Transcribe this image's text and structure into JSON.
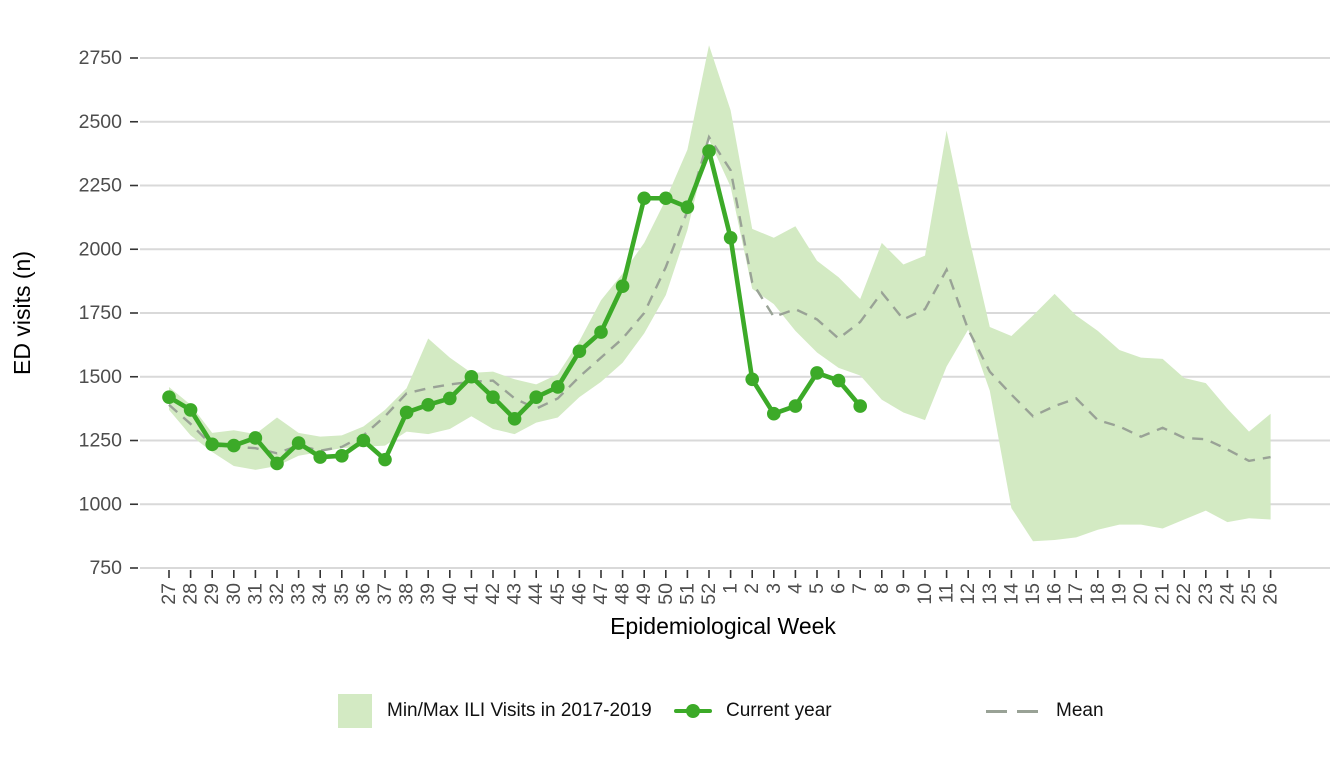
{
  "figure": {
    "y_axis_title": "ED visits (n)",
    "x_axis_title": "Epidemiological Week",
    "legend": {
      "band_label": "Min/Max ILI Visits in 2017-2019",
      "current_label": "Current year",
      "mean_label": "Mean"
    },
    "colors": {
      "band": "#d3eac3",
      "current": "#3caa28",
      "mean": "#99a296",
      "grid": "#d9d9d9",
      "tick": "#333333",
      "axis_text": "#4d4d4d",
      "title_text": "#000000"
    }
  },
  "chart_data": {
    "type": "line",
    "title": "",
    "xlabel": "Epidemiological Week",
    "ylabel": "ED visits (n)",
    "x": [
      "27",
      "28",
      "29",
      "30",
      "31",
      "32",
      "33",
      "34",
      "35",
      "36",
      "37",
      "38",
      "39",
      "40",
      "41",
      "42",
      "43",
      "44",
      "45",
      "46",
      "47",
      "48",
      "49",
      "50",
      "51",
      "52",
      "1",
      "2",
      "3",
      "4",
      "5",
      "6",
      "7",
      "8",
      "9",
      "10",
      "11",
      "12",
      "13",
      "14",
      "15",
      "16",
      "17",
      "18",
      "19",
      "20",
      "21",
      "22",
      "23",
      "24",
      "25",
      "26"
    ],
    "ylim": [
      750,
      2800
    ],
    "y_ticks": [
      750,
      1000,
      1250,
      1500,
      1750,
      2000,
      2250,
      2500,
      2750
    ],
    "grid": "horizontal",
    "legend_position": "bottom",
    "series": [
      {
        "name": "Min/Max ILI Visits in 2017-2019",
        "type": "band",
        "max": [
          1460,
          1390,
          1280,
          1290,
          1275,
          1340,
          1280,
          1265,
          1270,
          1305,
          1370,
          1455,
          1650,
          1575,
          1515,
          1520,
          1490,
          1470,
          1510,
          1640,
          1800,
          1905,
          2025,
          2195,
          2390,
          2800,
          2545,
          2080,
          2045,
          2090,
          1955,
          1890,
          1805,
          2025,
          1940,
          1975,
          2465,
          2060,
          1695,
          1660,
          1740,
          1825,
          1740,
          1680,
          1605,
          1575,
          1570,
          1495,
          1475,
          1375,
          1285,
          1355
        ],
        "min": [
          1370,
          1270,
          1205,
          1150,
          1135,
          1150,
          1190,
          1205,
          1220,
          1225,
          1230,
          1285,
          1275,
          1295,
          1345,
          1295,
          1275,
          1320,
          1340,
          1420,
          1480,
          1555,
          1670,
          1820,
          2075,
          2430,
          2245,
          1845,
          1785,
          1680,
          1595,
          1535,
          1505,
          1410,
          1360,
          1330,
          1540,
          1685,
          1445,
          985,
          855,
          860,
          870,
          900,
          920,
          920,
          905,
          940,
          975,
          930,
          945,
          940
        ]
      },
      {
        "name": "Mean",
        "type": "dashed-line",
        "values": [
          1390,
          1315,
          1230,
          1225,
          1220,
          1200,
          1230,
          1210,
          1225,
          1270,
          1345,
          1435,
          1455,
          1470,
          1480,
          1485,
          1415,
          1375,
          1415,
          1500,
          1575,
          1650,
          1750,
          1930,
          2150,
          2440,
          2310,
          1870,
          1735,
          1765,
          1725,
          1650,
          1715,
          1830,
          1725,
          1765,
          1920,
          1685,
          1520,
          1430,
          1345,
          1385,
          1415,
          1330,
          1305,
          1265,
          1300,
          1260,
          1255,
          1215,
          1170,
          1185
        ]
      },
      {
        "name": "Current year",
        "type": "line-markers",
        "values": [
          1420,
          1370,
          1235,
          1230,
          1260,
          1160,
          1240,
          1185,
          1190,
          1250,
          1175,
          1360,
          1390,
          1415,
          1500,
          1420,
          1335,
          1420,
          1460,
          1600,
          1675,
          1855,
          2200,
          2200,
          2165,
          2385,
          2045,
          1490,
          1355,
          1385,
          1515,
          1485,
          1385
        ]
      }
    ]
  }
}
